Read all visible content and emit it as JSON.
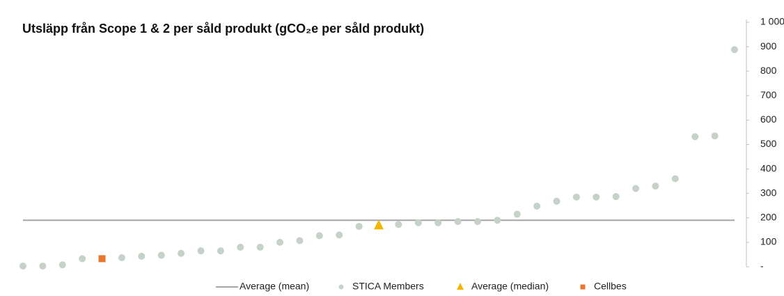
{
  "chart_data": {
    "type": "scatter",
    "title": "Utsläpp från Scope 1 & 2 per såld produkt (gCO₂e per såld produkt)",
    "categories": [
      null,
      null,
      null,
      null,
      null,
      null,
      null,
      null,
      null,
      null,
      null,
      null,
      null,
      null,
      null,
      null,
      null,
      null,
      null,
      null,
      null,
      null,
      null,
      null,
      null,
      null,
      null,
      null,
      null,
      null,
      null,
      null,
      null,
      null,
      null,
      null,
      null
    ],
    "series": [
      {
        "name": "Average (mean)",
        "marker": "line",
        "color": "#a6a6a6",
        "values": [
          190,
          190,
          190,
          190,
          190,
          190,
          190,
          190,
          190,
          190,
          190,
          190,
          190,
          190,
          190,
          190,
          190,
          190,
          190,
          190,
          190,
          190,
          190,
          190,
          190,
          190,
          190,
          190,
          190,
          190,
          190,
          190,
          190,
          190,
          190,
          190,
          190
        ]
      },
      {
        "name": "STICA Members",
        "marker": "circle",
        "color": "#c4d2c8",
        "values": [
          3,
          3,
          8,
          33,
          null,
          37,
          43,
          47,
          55,
          65,
          65,
          80,
          80,
          100,
          107,
          127,
          130,
          165,
          null,
          173,
          180,
          180,
          185,
          185,
          190,
          215,
          248,
          268,
          285,
          285,
          287,
          320,
          330,
          360,
          532,
          535,
          888
        ]
      },
      {
        "name": "Average (median)",
        "marker": "triangle",
        "color": "#f5b400",
        "values": [
          null,
          null,
          null,
          null,
          null,
          null,
          null,
          null,
          null,
          null,
          null,
          null,
          null,
          null,
          null,
          null,
          null,
          null,
          170,
          null,
          null,
          null,
          null,
          null,
          null,
          null,
          null,
          null,
          null,
          null,
          null,
          null,
          null,
          null,
          null,
          null,
          null
        ]
      },
      {
        "name": "Cellbes",
        "marker": "square",
        "color": "#e8772e",
        "values": [
          null,
          null,
          null,
          null,
          33,
          null,
          null,
          null,
          null,
          null,
          null,
          null,
          null,
          null,
          null,
          null,
          null,
          null,
          null,
          null,
          null,
          null,
          null,
          null,
          null,
          null,
          null,
          null,
          null,
          null,
          null,
          null,
          null,
          null,
          null,
          null,
          null
        ]
      }
    ],
    "ylim": [
      0,
      1000
    ],
    "yticks": [
      {
        "value": 0,
        "label": "-"
      },
      100,
      200,
      300,
      400,
      500,
      600,
      700,
      800,
      900,
      {
        "value": 1000,
        "label": "1 000"
      }
    ],
    "legend": "bottom"
  }
}
